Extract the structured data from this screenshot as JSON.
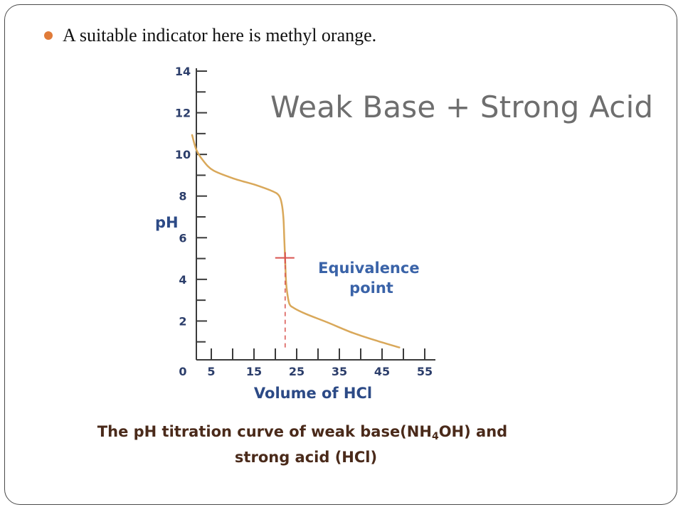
{
  "slide": {
    "bullet_text": "A suitable indicator here is methyl orange.",
    "title": "Weak Base + Strong Acid"
  },
  "colors": {
    "bullet": "#e07b39",
    "curve": "#d9a85a",
    "equivalence_marker": "#d9534f",
    "axis": "#3b3b3b"
  },
  "chart_data": {
    "type": "line",
    "xlabel": "Volume of HCl",
    "ylabel": "pH",
    "xlim": [
      0,
      55
    ],
    "ylim": [
      0,
      14
    ],
    "x_tick_labels": [
      "0",
      "5",
      "15",
      "25",
      "35",
      "45",
      "55"
    ],
    "x_tick_values": [
      0,
      5,
      15,
      25,
      35,
      45,
      55
    ],
    "y_tick_labels": [
      "0",
      "2",
      "4",
      "6",
      "8",
      "10",
      "12",
      "14"
    ],
    "y_tick_values": [
      0,
      2,
      4,
      6,
      8,
      10,
      12,
      14
    ],
    "series": [
      {
        "x": [
          0,
          1,
          2.5,
          5,
          10,
          15,
          19,
          20.5,
          21.2,
          21.6,
          21.8,
          22,
          22.2,
          22.5,
          23,
          24,
          27,
          32,
          38,
          44,
          49
        ],
        "y": [
          11,
          10.3,
          9.8,
          9.3,
          8.9,
          8.6,
          8.3,
          8.1,
          7.7,
          7.0,
          6.0,
          5.0,
          4.0,
          3.4,
          2.9,
          2.7,
          2.4,
          2.0,
          1.5,
          1.1,
          0.8
        ]
      }
    ],
    "annotations": [
      {
        "text": "Equivalence point",
        "lines": [
          "Equivalence",
          "point"
        ],
        "x": 22,
        "y": 5.1
      }
    ],
    "caption": {
      "line1_prefix": "The pH titration curve of weak base(NH",
      "line1_sub": "4",
      "line1_suffix": "OH) and",
      "line2": "strong acid (HCl)"
    }
  }
}
